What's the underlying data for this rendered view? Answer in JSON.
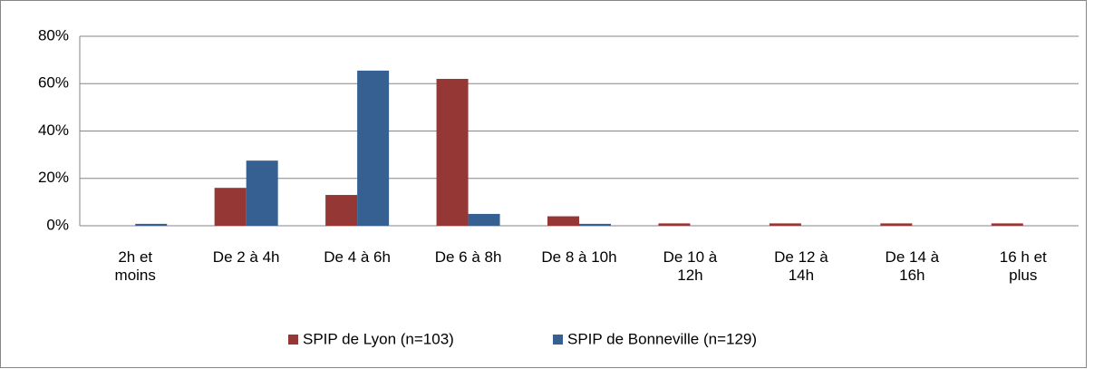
{
  "chart_data": {
    "type": "bar",
    "categories": [
      "2h et\nmoins",
      "De 2 à 4h",
      "De 4 à 6h",
      "De 6 à 8h",
      "De 8 à 10h",
      "De 10 à\n12h",
      "De 12 à\n14h",
      "De 14 à\n16h",
      "16 h et\nplus"
    ],
    "series": [
      {
        "name": "SPIP de Lyon (n=103)",
        "color": "#953735",
        "values": [
          0,
          16,
          13,
          62,
          4,
          1,
          1,
          1,
          1
        ]
      },
      {
        "name": "SPIP de Bonneville (n=129)",
        "color": "#366092",
        "values": [
          0.8,
          27.5,
          65.5,
          5,
          0.8,
          0,
          0,
          0,
          0
        ]
      }
    ],
    "ylim": [
      0,
      80
    ],
    "yticks": [
      {
        "value": 0,
        "label": "0%"
      },
      {
        "value": 20,
        "label": "20%"
      },
      {
        "value": 40,
        "label": "40%"
      },
      {
        "value": 60,
        "label": "60%"
      },
      {
        "value": 80,
        "label": "80%"
      }
    ],
    "grid": true,
    "legend": "bottom"
  }
}
